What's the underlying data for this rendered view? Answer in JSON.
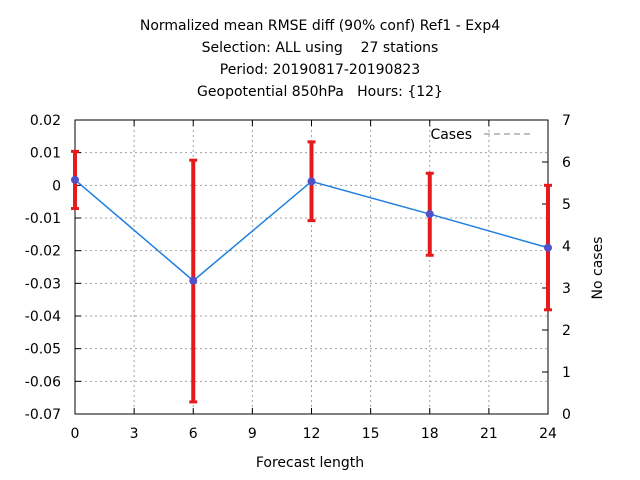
{
  "chart_data": {
    "type": "line",
    "title": [
      "Normalized mean RMSE diff (90% conf) Ref1 - Exp4",
      "Selection: ALL using    27 stations",
      "Period: 20190817-20190823",
      "Geopotential 850hPa   Hours: {12}"
    ],
    "xlabel": "Forecast length",
    "ylabel": "",
    "y2label": "No cases",
    "xlim": [
      0,
      24
    ],
    "ylim": [
      -0.07,
      0.02
    ],
    "y2lim": [
      0,
      7
    ],
    "xticks": [
      "0",
      "3",
      "6",
      "9",
      "12",
      "15",
      "18",
      "21",
      "24"
    ],
    "yticks": [
      "0.02",
      "0.01",
      "0",
      "-0.01",
      "-0.02",
      "-0.03",
      "-0.04",
      "-0.05",
      "-0.06",
      "-0.07"
    ],
    "y2ticks": [
      "7",
      "6",
      "5",
      "4",
      "3",
      "2",
      "1",
      "0"
    ],
    "grid": true,
    "legend": {
      "position": "top-right",
      "entries": [
        "Cases"
      ]
    },
    "series": [
      {
        "x": [
          0,
          6,
          12,
          18,
          24
        ],
        "y": [
          0.0017,
          -0.0292,
          0.0012,
          -0.0088,
          -0.0191
        ],
        "error_low": [
          -0.0071,
          -0.0663,
          -0.0108,
          -0.0214,
          -0.0381
        ],
        "error_high": [
          0.0104,
          0.0077,
          0.0133,
          0.0037,
          0.0
        ],
        "color": "#1f7fe0",
        "marker_color": "#5050c8",
        "error_color": "#e41a1c"
      }
    ],
    "cases_series": {
      "name": "Cases",
      "x": [
        0,
        6,
        12,
        18,
        24
      ],
      "values": [
        7,
        7,
        7,
        7,
        7
      ],
      "color": "#808080"
    }
  }
}
